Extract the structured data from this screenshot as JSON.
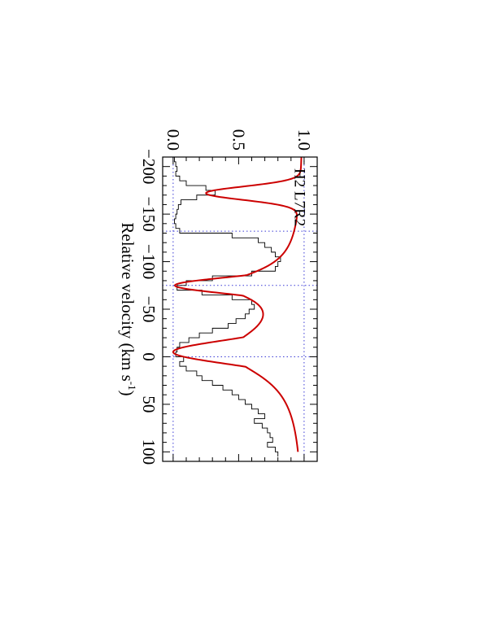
{
  "chart_data": {
    "type": "line",
    "xlabel": "Relative velocity (km s",
    "xlabel_sup": "-1",
    "xlabel_close": ")",
    "xlim": [
      -210,
      110
    ],
    "ylim": [
      -0.08,
      1.1
    ],
    "x_ticks": [
      {
        "value": -200,
        "label": "−200"
      },
      {
        "value": -150,
        "label": "−150"
      },
      {
        "value": -100,
        "label": "−100"
      },
      {
        "value": -50,
        "label": "−50"
      },
      {
        "value": 0,
        "label": "0"
      },
      {
        "value": 50,
        "label": "50"
      },
      {
        "value": 100,
        "label": "100"
      }
    ],
    "y_ticks": [
      {
        "value": 0.0,
        "label": "0.0"
      },
      {
        "value": 0.5,
        "label": "0.5"
      },
      {
        "value": 1.0,
        "label": "1.0"
      }
    ],
    "reference_lines": {
      "horizontal": [
        0.0,
        1.0
      ],
      "vertical": [
        -132,
        -75,
        0
      ],
      "color": "#3b3bd6"
    },
    "annotation": "H2 L7R2",
    "series": [
      {
        "kind": "histogram",
        "color": "#000000",
        "x": [
          -210,
          -205,
          -200,
          -195,
          -190,
          -185,
          -180,
          -175,
          -170,
          -165,
          -160,
          -155,
          -150,
          -145,
          -140,
          -135,
          -130,
          -125,
          -120,
          -115,
          -110,
          -105,
          -100,
          -95,
          -90,
          -85,
          -80,
          -75,
          -70,
          -65,
          -60,
          -55,
          -50,
          -45,
          -40,
          -35,
          -30,
          -25,
          -20,
          -15,
          -10,
          -5,
          0,
          5,
          10,
          15,
          20,
          25,
          30,
          35,
          40,
          45,
          50,
          55,
          60,
          65,
          70,
          75,
          80,
          85,
          90,
          95,
          100
        ],
        "y": [
          0.01,
          0.02,
          0.03,
          0.02,
          0.05,
          0.1,
          0.25,
          0.32,
          0.18,
          0.06,
          0.04,
          0.03,
          0.02,
          0.01,
          0.02,
          0.05,
          0.45,
          0.65,
          0.7,
          0.75,
          0.78,
          0.82,
          0.8,
          0.78,
          0.6,
          0.3,
          0.1,
          0.03,
          0.22,
          0.45,
          0.6,
          0.62,
          0.58,
          0.55,
          0.48,
          0.42,
          0.3,
          0.2,
          0.12,
          0.05,
          0.03,
          0.02,
          0.08,
          0.05,
          0.1,
          0.18,
          0.22,
          0.3,
          0.38,
          0.45,
          0.5,
          0.55,
          0.6,
          0.65,
          0.7,
          0.62,
          0.68,
          0.72,
          0.74,
          0.76,
          0.72,
          0.78,
          0.8
        ]
      },
      {
        "kind": "fit",
        "color": "#cc0000",
        "components": [
          {
            "center": -172,
            "depth": 0.74,
            "sigma": 7,
            "gamma": 0
          },
          {
            "center": -75,
            "depth": 0.985,
            "sigma": 8,
            "gamma": 3
          },
          {
            "center": -5,
            "depth": 1.0,
            "sigma": 12,
            "gamma": 5
          }
        ]
      }
    ]
  }
}
